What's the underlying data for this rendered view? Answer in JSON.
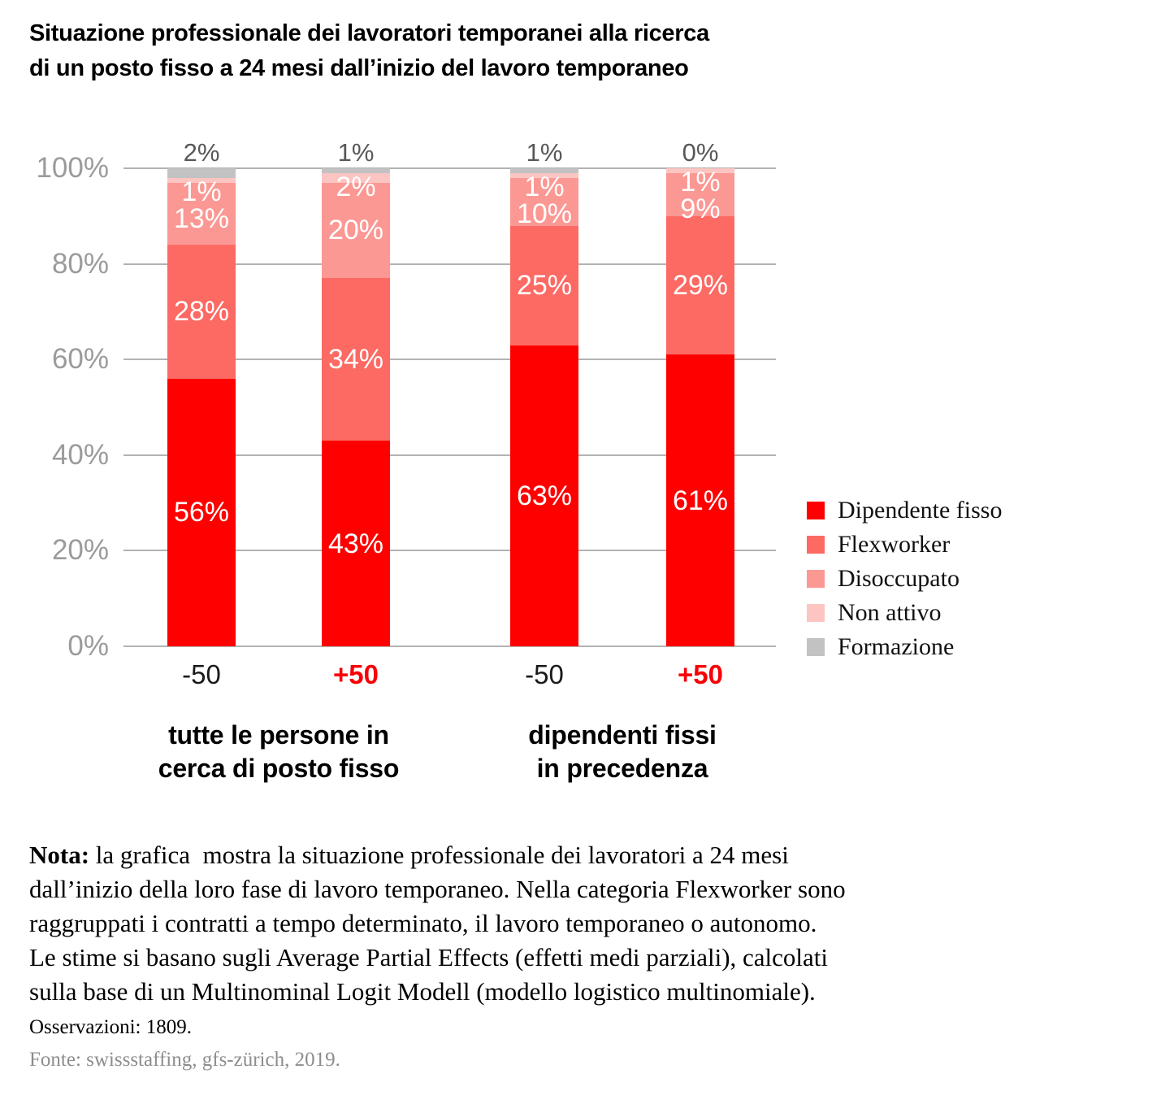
{
  "title": "Situazione professionale dei lavoratori temporanei alla ricerca\ndi un posto fisso a 24 mesi dall’inizio del lavoro temporaneo",
  "chart_data": {
    "type": "bar",
    "stacked": true,
    "title": "Situazione professionale dei lavoratori temporanei alla ricerca di un posto fisso a 24 mesi dall’inizio del lavoro temporaneo",
    "xlabel": "",
    "ylabel": "",
    "unit": "%",
    "ylim": [
      0,
      100
    ],
    "yticks": [
      0,
      20,
      40,
      60,
      80,
      100
    ],
    "grid": true,
    "legend_position": "right",
    "categories": [
      {
        "label": "-50",
        "color": "#1A1A1A",
        "bold": false
      },
      {
        "label": "+50",
        "color": "#F90008",
        "bold": true
      },
      {
        "label": "-50",
        "color": "#1A1A1A",
        "bold": false
      },
      {
        "label": "+50",
        "color": "#F90008",
        "bold": true
      }
    ],
    "group_labels": [
      {
        "label": "tutte le persone in\ncerca di posto fisso"
      },
      {
        "label": "dipendenti fissi\nin precedenza"
      }
    ],
    "series": [
      {
        "name": "Dipendente fisso",
        "color": "#FE0000",
        "values": [
          56,
          43,
          63,
          61
        ]
      },
      {
        "name": "Flexworker",
        "color": "#FC6A63",
        "values": [
          28,
          34,
          25,
          29
        ]
      },
      {
        "name": "Disoccupato",
        "color": "#FB9894",
        "values": [
          13,
          20,
          10,
          9
        ]
      },
      {
        "name": "Non attivo",
        "color": "#FCC5C2",
        "values": [
          1,
          2,
          1,
          1
        ]
      },
      {
        "name": "Formazione",
        "color": "#C2C2C2",
        "values": [
          2,
          1,
          1,
          0
        ]
      }
    ]
  },
  "colors": {
    "gridline": "#B3B3B3",
    "axis_text": "#9B9B9B",
    "above_label": "#58585A",
    "bar_label_text": "#FFFFFF",
    "source_text": "#8D8D8D"
  },
  "note": {
    "label": "Nota:",
    "body": " la grafica  mostra la situazione professionale dei lavoratori a 24 mesi\ndall’inizio della loro fase di lavoro temporaneo. Nella categoria Flexworker sono\nraggruppati i contratti a tempo determinato, il lavoro temporaneo o autonomo.\nLe stime si basano sugli Average Partial Effects (effetti medi parziali), calcolati\nsulla base di un Multinominal Logit Modell (modello logistico multinomiale)."
  },
  "observations": "Osservazioni: 1809.",
  "source": "Fonte: swissstaffing, gfs-zürich, 2019."
}
